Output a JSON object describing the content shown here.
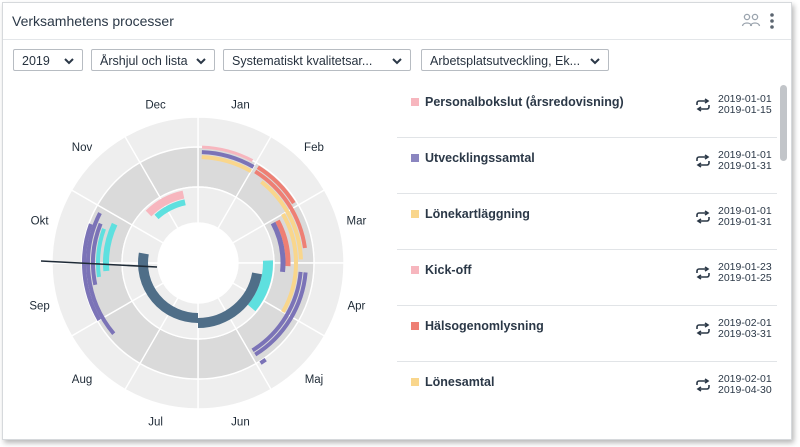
{
  "header": {
    "title": "Verksamhetens processer"
  },
  "filters": {
    "year": "2019",
    "view": "Årshjul och lista",
    "area": "Systematiskt kvalitetsar...",
    "category": "Arbetsplatsutveckling, Ek..."
  },
  "wheel": {
    "months": [
      "Jan",
      "Feb",
      "Mar",
      "Apr",
      "Maj",
      "Jun",
      "Jul",
      "Aug",
      "Sep",
      "Okt",
      "Nov",
      "Dec"
    ],
    "colors": {
      "ring_light": "#eeeeee",
      "ring_mid": "#dadada",
      "pink": "#f7b6be",
      "purple": "#7b73b7",
      "yellow": "#f9d68c",
      "salmon": "#ee7f74",
      "teal": "#5ee0df",
      "steel": "#4f6e88"
    }
  },
  "processes": [
    {
      "name": "Personalbokslut (årsredovisning)",
      "start": "2019-01-01",
      "end": "2019-01-15",
      "color": "#f7b6be"
    },
    {
      "name": "Utvecklingssamtal",
      "start": "2019-01-01",
      "end": "2019-01-31",
      "color": "#8b86c0"
    },
    {
      "name": "Lönekartläggning",
      "start": "2019-01-01",
      "end": "2019-01-31",
      "color": "#f9d68c"
    },
    {
      "name": "Kick-off",
      "start": "2019-01-23",
      "end": "2019-01-25",
      "color": "#f7b6be"
    },
    {
      "name": "Hälsogenomlysning",
      "start": "2019-02-01",
      "end": "2019-03-31",
      "color": "#ee7f74"
    },
    {
      "name": "Lönesamtal",
      "start": "2019-02-01",
      "end": "2019-04-30",
      "color": "#f9d68c"
    }
  ]
}
